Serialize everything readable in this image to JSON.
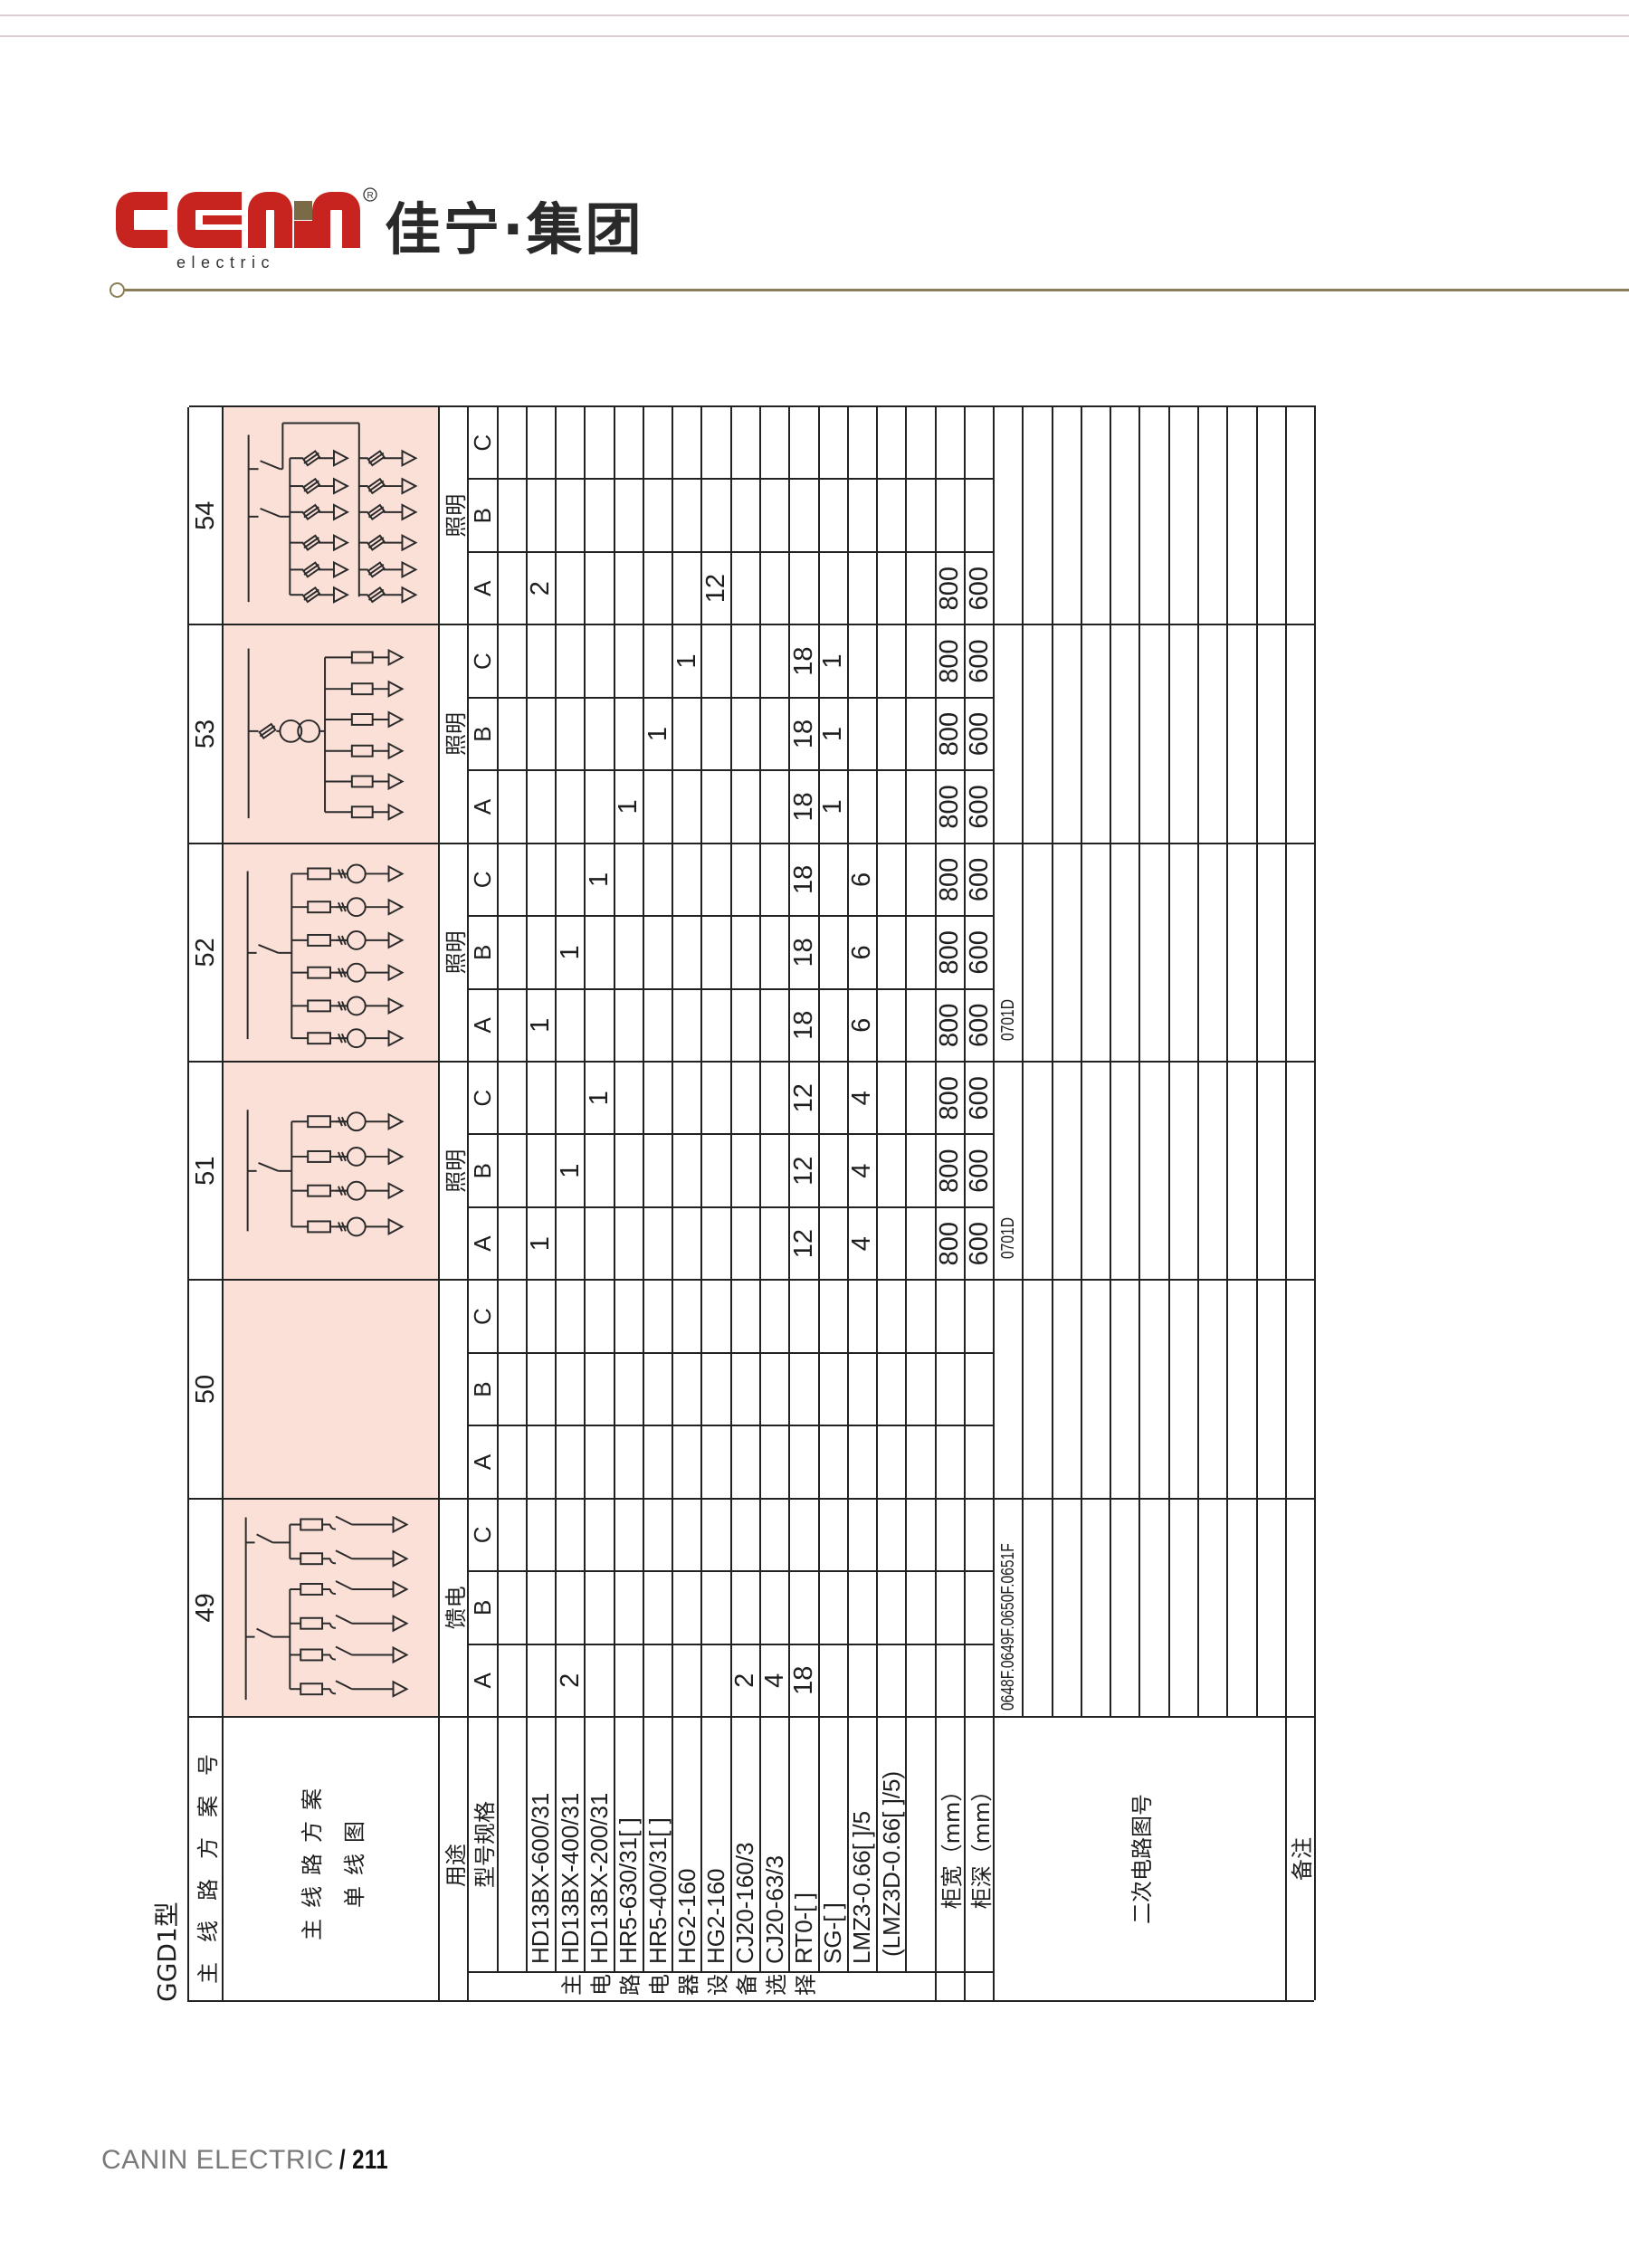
{
  "header": {
    "logo_text": "canin",
    "logo_sub": "electric",
    "registered": "®",
    "brand_cn": "佳宁·集团",
    "colors": {
      "logo_red": "#c8241f",
      "logo_olive": "#7a6a45",
      "rule": "#8b7d55",
      "diagram_bg": "#fbe0d8"
    }
  },
  "table": {
    "model": "GGD1型",
    "labels": {
      "scheme_no": "主线路方案号",
      "diagram_line1": "主线路方案",
      "diagram_line2": "单线图",
      "usage": "用途",
      "spec": "型号规格",
      "category": "主电路电器设备选择",
      "width": "柜宽（mm）",
      "depth": "柜深（mm）",
      "secondary": "二次电路图号",
      "remarks": "备注"
    },
    "equipment": [
      "HD13BX-600/31",
      "HD13BX-400/31",
      "HD13BX-200/31",
      "HR5-630/31[ ]",
      "HR5-400/31[ ]",
      "HG2-160",
      "HG2-160",
      "CJ20-160/3",
      "CJ20-63/3",
      "RT0-[ ]",
      "SG-[ ]",
      "LMZ3-0.66[ ]/5",
      "(LMZ3D-0.66[ ]/5)"
    ],
    "schemes": [
      {
        "no": "49",
        "usage": "馈电",
        "diagram": "feeder-switch-fuse-6-icon",
        "phases": [
          "A",
          "B",
          "C"
        ],
        "rows": [
          [
            "",
            "",
            ""
          ],
          [
            "2",
            "",
            ""
          ],
          [
            "",
            "",
            ""
          ],
          [
            "",
            "",
            ""
          ],
          [
            "",
            "",
            ""
          ],
          [
            "",
            "",
            ""
          ],
          [
            "",
            "",
            ""
          ],
          [
            "2",
            "",
            ""
          ],
          [
            "4",
            "",
            ""
          ],
          [
            "18",
            "",
            ""
          ],
          [
            "",
            "",
            ""
          ],
          [
            "",
            "",
            ""
          ],
          [
            "",
            "",
            ""
          ]
        ],
        "width": [
          "",
          "",
          ""
        ],
        "depth": [
          "",
          "",
          ""
        ],
        "secondary": "0648F.0649F.0650F.0651F"
      },
      {
        "no": "50",
        "usage": "",
        "diagram": "",
        "phases": [
          "A",
          "B",
          "C"
        ],
        "rows": [
          [
            "",
            "",
            ""
          ],
          [
            "",
            "",
            ""
          ],
          [
            "",
            "",
            ""
          ],
          [
            "",
            "",
            ""
          ],
          [
            "",
            "",
            ""
          ],
          [
            "",
            "",
            ""
          ],
          [
            "",
            "",
            ""
          ],
          [
            "",
            "",
            ""
          ],
          [
            "",
            "",
            ""
          ],
          [
            "",
            "",
            ""
          ],
          [
            "",
            "",
            ""
          ],
          [
            "",
            "",
            ""
          ],
          [
            "",
            "",
            ""
          ]
        ],
        "width": [
          "",
          "",
          ""
        ],
        "depth": [
          "",
          "",
          ""
        ],
        "secondary": ""
      },
      {
        "no": "51",
        "usage": "照明",
        "diagram": "lighting-fuse-ct-4-icon",
        "phases": [
          "A",
          "B",
          "C"
        ],
        "rows": [
          [
            "1",
            "",
            ""
          ],
          [
            "",
            "1",
            ""
          ],
          [
            "",
            "",
            "1"
          ],
          [
            "",
            "",
            ""
          ],
          [
            "",
            "",
            ""
          ],
          [
            "",
            "",
            ""
          ],
          [
            "",
            "",
            ""
          ],
          [
            "",
            "",
            ""
          ],
          [
            "",
            "",
            ""
          ],
          [
            "12",
            "12",
            "12"
          ],
          [
            "",
            "",
            ""
          ],
          [
            "4",
            "4",
            "4"
          ],
          [
            "",
            "",
            ""
          ]
        ],
        "width": [
          "800",
          "800",
          "800"
        ],
        "depth": [
          "600",
          "600",
          "600"
        ],
        "secondary": "0701D"
      },
      {
        "no": "52",
        "usage": "照明",
        "diagram": "lighting-fuse-ct-6-icon",
        "phases": [
          "A",
          "B",
          "C"
        ],
        "rows": [
          [
            "1",
            "",
            ""
          ],
          [
            "",
            "1",
            ""
          ],
          [
            "",
            "",
            "1"
          ],
          [
            "",
            "",
            ""
          ],
          [
            "",
            "",
            ""
          ],
          [
            "",
            "",
            ""
          ],
          [
            "",
            "",
            ""
          ],
          [
            "",
            "",
            ""
          ],
          [
            "",
            "",
            ""
          ],
          [
            "18",
            "18",
            "18"
          ],
          [
            "",
            "",
            ""
          ],
          [
            "6",
            "6",
            "6"
          ],
          [
            "",
            "",
            ""
          ]
        ],
        "width": [
          "800",
          "800",
          "800"
        ],
        "depth": [
          "600",
          "600",
          "600"
        ],
        "secondary": "0701D"
      },
      {
        "no": "53",
        "usage": "照明",
        "diagram": "lighting-transformer-fuse-6-icon",
        "phases": [
          "A",
          "B",
          "C"
        ],
        "rows": [
          [
            "",
            "",
            ""
          ],
          [
            "",
            "",
            ""
          ],
          [
            "",
            "",
            ""
          ],
          [
            "1",
            "",
            ""
          ],
          [
            "",
            "1",
            ""
          ],
          [
            "",
            "",
            "1"
          ],
          [
            "",
            "",
            ""
          ],
          [
            "",
            "",
            ""
          ],
          [
            "",
            "",
            ""
          ],
          [
            "18",
            "18",
            "18"
          ],
          [
            "1",
            "1",
            "1"
          ],
          [
            "",
            "",
            ""
          ],
          [
            "",
            "",
            ""
          ]
        ],
        "width": [
          "800",
          "800",
          "800"
        ],
        "depth": [
          "600",
          "600",
          "600"
        ],
        "secondary": ""
      },
      {
        "no": "54",
        "usage": "照明",
        "diagram": "lighting-dual-switch-fuse-12-icon",
        "phases": [
          "A",
          "B",
          "C"
        ],
        "rows": [
          [
            "2",
            "",
            ""
          ],
          [
            "",
            "",
            ""
          ],
          [
            "",
            "",
            ""
          ],
          [
            "",
            "",
            ""
          ],
          [
            "",
            "",
            ""
          ],
          [
            "",
            "",
            ""
          ],
          [
            "12",
            "",
            ""
          ],
          [
            "",
            "",
            ""
          ],
          [
            "",
            "",
            ""
          ],
          [
            "",
            "",
            ""
          ],
          [
            "",
            "",
            ""
          ],
          [
            "",
            "",
            ""
          ],
          [
            "",
            "",
            ""
          ]
        ],
        "width": [
          "800",
          "",
          ""
        ],
        "depth": [
          "600",
          "",
          ""
        ],
        "secondary": ""
      }
    ]
  },
  "footer": {
    "company": "CANIN ELECTRIC",
    "page": "/ 211"
  }
}
